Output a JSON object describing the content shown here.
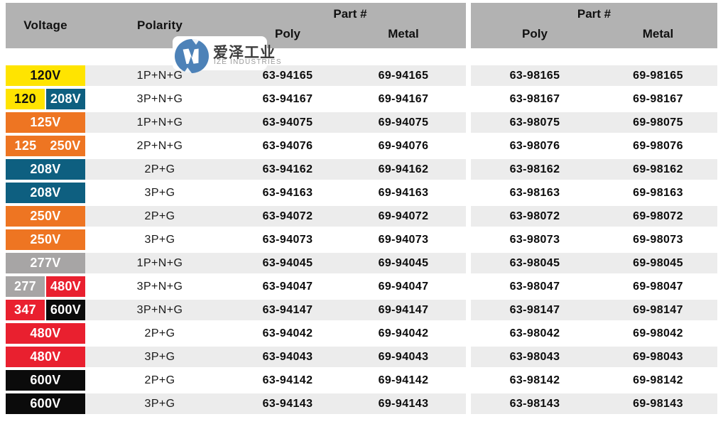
{
  "header": {
    "voltage_label": "Voltage",
    "polarity_label": "Polarity",
    "part_group_left": {
      "title": "Part #",
      "poly": "Poly",
      "metal": "Metal"
    },
    "part_group_right": {
      "title": "Part #",
      "poly": "Poly",
      "metal": "Metal"
    }
  },
  "watermark": {
    "logo_icon": "ize-swirl-logo",
    "name_cn": "爱泽工业",
    "name_en": "IZE INDUSTRIES",
    "logo_color": "#4d82b8"
  },
  "colors": {
    "yellow": {
      "bg": "#ffe400",
      "fg": "#111111"
    },
    "teal": {
      "bg": "#0e5f80",
      "fg": "#ffffff"
    },
    "orange": {
      "bg": "#ee7522",
      "fg": "#ffffff"
    },
    "gray": {
      "bg": "#a7a5a5",
      "fg": "#ffffff"
    },
    "red": {
      "bg": "#e9202f",
      "fg": "#ffffff"
    },
    "black": {
      "bg": "#0b0b0b",
      "fg": "#ffffff"
    },
    "header_bg": "#b2b2b2",
    "stripe_bg": "#ececec"
  },
  "rows": [
    {
      "voltage": [
        {
          "label": "120V",
          "color": "yellow"
        }
      ],
      "gap": 0,
      "polarity": "1P+N+G",
      "poly1": "63-94165",
      "metal1": "69-94165",
      "poly2": "63-98165",
      "metal2": "69-98165",
      "striped": true
    },
    {
      "voltage": [
        {
          "label": "120",
          "color": "yellow"
        },
        {
          "label": "208V",
          "color": "teal"
        }
      ],
      "gap": 2,
      "polarity": "3P+N+G",
      "poly1": "63-94167",
      "metal1": "69-94167",
      "poly2": "63-98167",
      "metal2": "69-98167",
      "striped": false
    },
    {
      "voltage": [
        {
          "label": "125V",
          "color": "orange"
        }
      ],
      "gap": 0,
      "polarity": "1P+N+G",
      "poly1": "63-94075",
      "metal1": "69-94075",
      "poly2": "63-98075",
      "metal2": "69-98075",
      "striped": true
    },
    {
      "voltage": [
        {
          "label": "125",
          "color": "orange"
        },
        {
          "label": "250V",
          "color": "orange"
        }
      ],
      "gap": 0,
      "polarity": "2P+N+G",
      "poly1": "63-94076",
      "metal1": "69-94076",
      "poly2": "63-98076",
      "metal2": "69-98076",
      "striped": false
    },
    {
      "voltage": [
        {
          "label": "208V",
          "color": "teal"
        }
      ],
      "gap": 0,
      "polarity": "2P+G",
      "poly1": "63-94162",
      "metal1": "69-94162",
      "poly2": "63-98162",
      "metal2": "69-98162",
      "striped": true
    },
    {
      "voltage": [
        {
          "label": "208V",
          "color": "teal"
        }
      ],
      "gap": 0,
      "polarity": "3P+G",
      "poly1": "63-94163",
      "metal1": "69-94163",
      "poly2": "63-98163",
      "metal2": "69-98163",
      "striped": false
    },
    {
      "voltage": [
        {
          "label": "250V",
          "color": "orange"
        }
      ],
      "gap": 0,
      "polarity": "2P+G",
      "poly1": "63-94072",
      "metal1": "69-94072",
      "poly2": "63-98072",
      "metal2": "69-98072",
      "striped": true
    },
    {
      "voltage": [
        {
          "label": "250V",
          "color": "orange"
        }
      ],
      "gap": 0,
      "polarity": "3P+G",
      "poly1": "63-94073",
      "metal1": "69-94073",
      "poly2": "63-98073",
      "metal2": "69-98073",
      "striped": false
    },
    {
      "voltage": [
        {
          "label": "277V",
          "color": "gray"
        }
      ],
      "gap": 0,
      "polarity": "1P+N+G",
      "poly1": "63-94045",
      "metal1": "69-94045",
      "poly2": "63-98045",
      "metal2": "69-98045",
      "striped": true
    },
    {
      "voltage": [
        {
          "label": "277",
          "color": "gray"
        },
        {
          "label": "480V",
          "color": "red"
        }
      ],
      "gap": 2,
      "polarity": "3P+N+G",
      "poly1": "63-94047",
      "metal1": "69-94047",
      "poly2": "63-98047",
      "metal2": "69-98047",
      "striped": false
    },
    {
      "voltage": [
        {
          "label": "347",
          "color": "red"
        },
        {
          "label": "600V",
          "color": "black"
        }
      ],
      "gap": 2,
      "polarity": "3P+N+G",
      "poly1": "63-94147",
      "metal1": "69-94147",
      "poly2": "63-98147",
      "metal2": "69-98147",
      "striped": true
    },
    {
      "voltage": [
        {
          "label": "480V",
          "color": "red"
        }
      ],
      "gap": 0,
      "polarity": "2P+G",
      "poly1": "63-94042",
      "metal1": "69-94042",
      "poly2": "63-98042",
      "metal2": "69-98042",
      "striped": false
    },
    {
      "voltage": [
        {
          "label": "480V",
          "color": "red"
        }
      ],
      "gap": 0,
      "polarity": "3P+G",
      "poly1": "63-94043",
      "metal1": "69-94043",
      "poly2": "63-98043",
      "metal2": "69-98043",
      "striped": true
    },
    {
      "voltage": [
        {
          "label": "600V",
          "color": "black"
        }
      ],
      "gap": 0,
      "polarity": "2P+G",
      "poly1": "63-94142",
      "metal1": "69-94142",
      "poly2": "63-98142",
      "metal2": "69-98142",
      "striped": false
    },
    {
      "voltage": [
        {
          "label": "600V",
          "color": "black"
        }
      ],
      "gap": 0,
      "polarity": "3P+G",
      "poly1": "63-94143",
      "metal1": "69-94143",
      "poly2": "63-98143",
      "metal2": "69-98143",
      "striped": true
    }
  ]
}
